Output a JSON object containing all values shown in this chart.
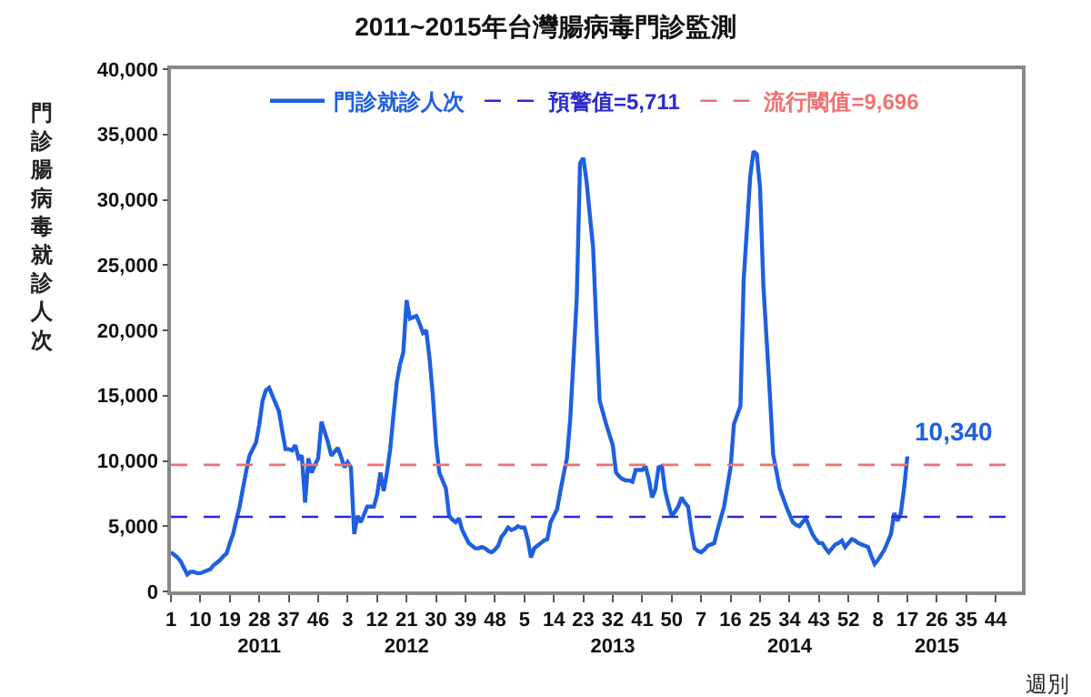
{
  "chart_data": {
    "type": "line",
    "title": "2011~2015年台灣腸病毒門診監測",
    "xlabel": "週別",
    "ylabel": "門診腸病毒就診人次",
    "categories": [
      "1",
      null,
      null,
      null,
      null,
      null,
      null,
      null,
      null,
      "10",
      null,
      null,
      null,
      null,
      null,
      null,
      null,
      null,
      "19",
      null,
      null,
      null,
      null,
      null,
      null,
      null,
      null,
      "28\n2011",
      null,
      null,
      null,
      null,
      null,
      null,
      null,
      null,
      "37",
      null,
      null,
      null,
      null,
      null,
      null,
      null,
      null,
      "46",
      null,
      null,
      null,
      null,
      null,
      null,
      null,
      null,
      "3",
      null,
      null,
      null,
      null,
      null,
      null,
      null,
      null,
      "12",
      null,
      null,
      null,
      null,
      null,
      null,
      null,
      null,
      "21\n2012",
      null,
      null,
      null,
      null,
      null,
      null,
      null,
      null,
      "30",
      null,
      null,
      null,
      null,
      null,
      null,
      null,
      null,
      "39",
      null,
      null,
      null,
      null,
      null,
      null,
      null,
      null,
      "48",
      null,
      null,
      null,
      null,
      null,
      null,
      null,
      null,
      "5",
      null,
      null,
      null,
      null,
      null,
      null,
      null,
      null,
      "14",
      null,
      null,
      null,
      null,
      null,
      null,
      null,
      null,
      "23",
      null,
      null,
      null,
      null,
      null,
      null,
      null,
      null,
      "32\n2013",
      null,
      null,
      null,
      null,
      null,
      null,
      null,
      null,
      "41",
      null,
      null,
      null,
      null,
      null,
      null,
      null,
      null,
      "50",
      null,
      null,
      null,
      null,
      null,
      null,
      null,
      null,
      "7",
      null,
      null,
      null,
      null,
      null,
      null,
      null,
      null,
      "16",
      null,
      null,
      null,
      null,
      null,
      null,
      null,
      null,
      "25",
      null,
      null,
      null,
      null,
      null,
      null,
      null,
      null,
      "34\n2014",
      null,
      null,
      null,
      null,
      null,
      null,
      null,
      null,
      "43",
      null,
      null,
      null,
      null,
      null,
      null,
      null,
      null,
      "52",
      null,
      null,
      null,
      null,
      null,
      null,
      null,
      null,
      "8",
      null,
      null,
      null,
      null,
      null,
      null,
      null,
      null,
      "17",
      null,
      null,
      null,
      null,
      null,
      null,
      null,
      null,
      "26\n2015",
      null,
      null,
      null,
      null,
      null,
      null,
      null,
      null,
      "35",
      null,
      null,
      null,
      null,
      null,
      null,
      null,
      null,
      "44",
      null,
      null,
      null,
      null,
      null,
      null,
      null,
      null
    ],
    "series": [
      {
        "name": "門診就診人次",
        "color": "#1f5fe0",
        "values": [
          3000,
          2800,
          2600,
          2300,
          1800,
          1300,
          1500,
          1500,
          1400,
          1400,
          1500,
          1600,
          1700,
          2000,
          2200,
          2400,
          2700,
          2900,
          3700,
          4400,
          5500,
          6500,
          7900,
          9200,
          10400,
          10900,
          11400,
          12800,
          14600,
          15400,
          15600,
          15000,
          14400,
          13800,
          12300,
          10900,
          10900,
          10800,
          11200,
          10200,
          10400,
          6800,
          10200,
          9100,
          9700,
          10200,
          13000,
          12200,
          11400,
          10400,
          10700,
          11000,
          10300,
          9500,
          9900,
          9500,
          4400,
          5800,
          5300,
          5900,
          6500,
          6500,
          6500,
          7400,
          9100,
          7700,
          9100,
          10900,
          13500,
          16000,
          17400,
          18300,
          22300,
          20900,
          21000,
          21100,
          20500,
          19800,
          20000,
          17900,
          15100,
          11400,
          9100,
          8500,
          7900,
          5800,
          5500,
          5300,
          5600,
          4700,
          4200,
          3700,
          3500,
          3300,
          3300,
          3400,
          3300,
          3100,
          3000,
          3200,
          3500,
          4200,
          4500,
          4900,
          4700,
          4800,
          5000,
          4900,
          4900,
          4000,
          2600,
          3300,
          3500,
          3700,
          3900,
          4000,
          5300,
          5800,
          6300,
          7700,
          9000,
          10200,
          13200,
          17800,
          22500,
          32800,
          33200,
          31400,
          28800,
          26300,
          20200,
          14600,
          13700,
          12800,
          12000,
          11200,
          9100,
          8800,
          8600,
          8500,
          8500,
          8400,
          9300,
          9300,
          9300,
          9600,
          8600,
          7200,
          7800,
          9500,
          9600,
          7700,
          6700,
          5800,
          6100,
          6500,
          7200,
          6800,
          6500,
          4700,
          3300,
          3100,
          3000,
          3200,
          3500,
          3600,
          3700,
          4700,
          5600,
          6500,
          8000,
          9500,
          12800,
          13500,
          14200,
          23900,
          27800,
          31800,
          33700,
          33500,
          30900,
          23500,
          19300,
          15100,
          10500,
          9200,
          7900,
          7200,
          6500,
          5900,
          5300,
          5100,
          5000,
          5300,
          5600,
          5000,
          4400,
          4000,
          3700,
          3700,
          3300,
          3000,
          3300,
          3600,
          3700,
          3900,
          3400,
          3700,
          4000,
          3900,
          3700,
          3600,
          3500,
          3400,
          2700,
          2100,
          2400,
          2800,
          3200,
          3800,
          4400,
          6000,
          5400,
          6000,
          7900,
          10340,
          null,
          null,
          null,
          null,
          null,
          null,
          null,
          null,
          null,
          null,
          null,
          null,
          null,
          null,
          null,
          null,
          null,
          null,
          null,
          null,
          null,
          null,
          null,
          null,
          null,
          null,
          null,
          null,
          null,
          null,
          null,
          null,
          null,
          null,
          null
        ]
      }
    ],
    "annotations": [
      {
        "text": "10,340",
        "x": "17",
        "y": 10340
      }
    ],
    "ref_lines": [
      {
        "axis": "y",
        "value": 5711,
        "label": "預警值=5,711",
        "color": "#2b2bd0",
        "line_style": "dashed"
      },
      {
        "axis": "y",
        "value": 9696,
        "label": "流行閾值=9,696",
        "color": "#f07070",
        "line_style": "dashed"
      }
    ],
    "ylim": [
      0,
      40000
    ],
    "yticks": [
      0,
      {
        "value": 5000,
        "label": "5,000"
      },
      {
        "value": 10000,
        "label": "10,000"
      },
      {
        "value": 15000,
        "label": "15,000"
      },
      {
        "value": 20000,
        "label": "20,000"
      },
      {
        "value": 25000,
        "label": "25,000"
      },
      {
        "value": 30000,
        "label": "30,000"
      },
      {
        "value": 35000,
        "label": "35,000"
      },
      {
        "value": 40000,
        "label": "40,000"
      }
    ],
    "legend": "top",
    "marker": "none",
    "line_style": "solid"
  }
}
